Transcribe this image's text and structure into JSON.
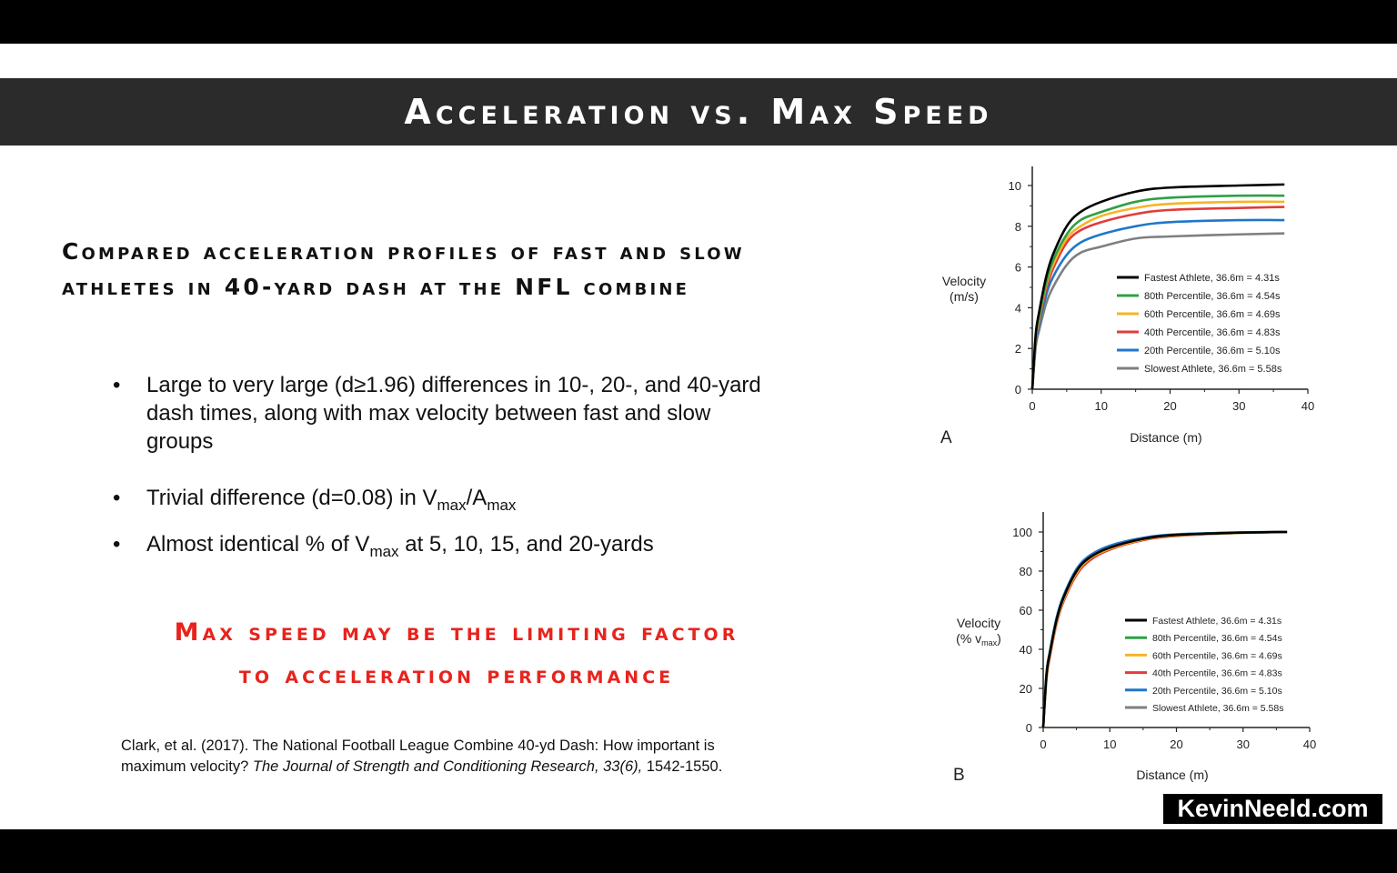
{
  "slide": {
    "title": "Acceleration vs. Max Speed",
    "heading": "Compared acceleration profiles of fast and slow athletes in 40-yard dash at the NFL combine",
    "bullets": [
      {
        "text": "Large to very large (d≥1.96) differences in 10-, 20-, and 40-yard dash times, along with max velocity between fast and slow groups"
      },
      {
        "pre": "Trivial difference (d=0.08) in V",
        "sub1": "max",
        "mid": "/A",
        "sub2": "max"
      },
      {
        "pre": "Almost identical % of V",
        "sub1": "max",
        "post": " at 5, 10, 15, and 20-yards"
      }
    ],
    "callout": [
      "Max speed may be the limiting factor",
      "to acceleration performance"
    ],
    "citation": {
      "pre": "Clark, et al. (2017). The National Football League Combine 40-yd Dash: How important is maximum velocity? ",
      "journal": "The Journal of Strength and Conditioning Research, 33(6),",
      "post": " 1542-1550."
    },
    "logo": "KevinNeeld.com"
  },
  "chart_data": [
    {
      "type": "line",
      "panel": "A",
      "xlabel": "Distance (m)",
      "ylabel": [
        "Velocity",
        "(m/s)"
      ],
      "xlim": [
        0,
        40
      ],
      "ylim": [
        0,
        10
      ],
      "xticks": [
        0,
        10,
        20,
        30,
        40
      ],
      "yticks": [
        0,
        2,
        4,
        6,
        8,
        10
      ],
      "grid": false,
      "legend": "right",
      "x": [
        0,
        0.5,
        1,
        2,
        3,
        5,
        7,
        10,
        15,
        20,
        30,
        36.6
      ],
      "series": [
        {
          "name": "Fastest Athlete, 36.6m = 4.31s",
          "color": "#000000",
          "values": [
            0,
            2.7,
            3.8,
            5.5,
            6.6,
            8.0,
            8.7,
            9.2,
            9.7,
            9.9,
            10.0,
            10.05
          ]
        },
        {
          "name": "80th Percentile, 36.6m = 4.54s",
          "color": "#2ea043",
          "values": [
            0,
            2.6,
            3.6,
            5.2,
            6.3,
            7.6,
            8.3,
            8.7,
            9.2,
            9.4,
            9.5,
            9.5
          ]
        },
        {
          "name": "60th Percentile, 36.6m = 4.69s",
          "color": "#f6b426",
          "values": [
            0,
            2.5,
            3.5,
            5.1,
            6.1,
            7.4,
            8.0,
            8.5,
            8.9,
            9.1,
            9.2,
            9.2
          ]
        },
        {
          "name": "40th Percentile, 36.6m = 4.83s",
          "color": "#e23b3b",
          "values": [
            0,
            2.4,
            3.4,
            4.9,
            5.9,
            7.2,
            7.8,
            8.2,
            8.6,
            8.8,
            8.9,
            8.95
          ]
        },
        {
          "name": "20th Percentile, 36.6m = 5.10s",
          "color": "#2077c8",
          "values": [
            0,
            2.2,
            3.2,
            4.6,
            5.5,
            6.6,
            7.2,
            7.6,
            8.0,
            8.2,
            8.3,
            8.3
          ]
        },
        {
          "name": "Slowest Athlete, 36.6m = 5.58s",
          "color": "#7f7f7f",
          "values": [
            0,
            2.1,
            2.9,
            4.2,
            5.0,
            6.1,
            6.7,
            7.0,
            7.4,
            7.5,
            7.6,
            7.65
          ]
        }
      ]
    },
    {
      "type": "line",
      "panel": "B",
      "xlabel": "Distance (m)",
      "ylabel": [
        "Velocity",
        "(% v",
        "max",
        ")"
      ],
      "xlim": [
        0,
        40
      ],
      "ylim": [
        0,
        100
      ],
      "xticks": [
        0,
        10,
        20,
        30,
        40
      ],
      "yticks": [
        0,
        20,
        40,
        60,
        80,
        100
      ],
      "grid": false,
      "legend": "right",
      "x": [
        0,
        0.5,
        1,
        2,
        3,
        5,
        7,
        10,
        15,
        20,
        30,
        36.6
      ],
      "series": [
        {
          "name": "Fastest Athlete, 36.6m = 4.31s",
          "color": "#000000",
          "values": [
            0,
            27,
            38,
            55,
            66,
            80,
            87,
            92,
            96.5,
            98.5,
            99.7,
            100
          ]
        },
        {
          "name": "80th Percentile, 36.6m = 4.54s",
          "color": "#2ea043",
          "values": [
            0,
            27,
            38,
            55,
            66,
            80,
            87,
            92,
            96.5,
            98.5,
            99.7,
            100
          ]
        },
        {
          "name": "60th Percentile, 36.6m = 4.69s",
          "color": "#f6b426",
          "values": [
            0,
            26,
            37,
            54,
            65,
            79,
            86.5,
            91.5,
            96.2,
            98.3,
            99.6,
            100
          ]
        },
        {
          "name": "40th Percentile, 36.6m = 4.83s",
          "color": "#e23b3b",
          "values": [
            0,
            25,
            36,
            53,
            64,
            78,
            85.5,
            91,
            95.8,
            98,
            99.6,
            100
          ]
        },
        {
          "name": "20th Percentile, 36.6m = 5.10s",
          "color": "#2077c8",
          "values": [
            0,
            28,
            39,
            56,
            67,
            81,
            88,
            93,
            97,
            98.8,
            99.8,
            100
          ]
        },
        {
          "name": "Slowest Athlete, 36.6m = 5.58s",
          "color": "#7f7f7f",
          "values": [
            0,
            27.5,
            38.5,
            55.5,
            66.5,
            80.5,
            87.5,
            92.5,
            96.8,
            98.7,
            99.7,
            100
          ]
        }
      ]
    }
  ]
}
